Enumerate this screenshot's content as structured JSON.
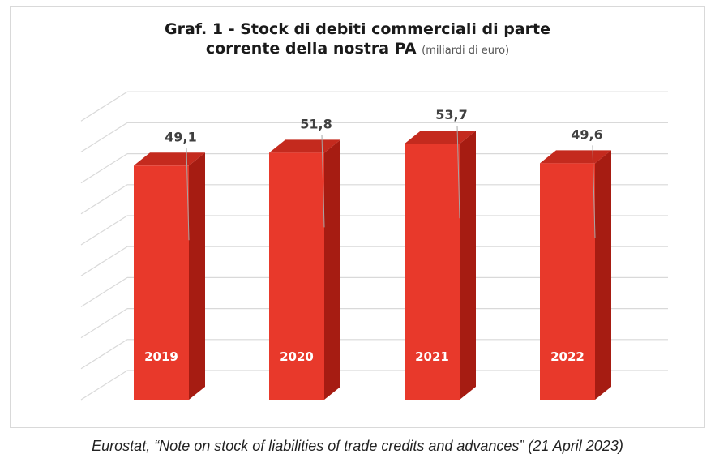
{
  "chart_data": {
    "type": "bar",
    "title_line1": "Graf. 1 - Stock di debiti commerciali di parte",
    "title_line2": "corrente della nostra PA",
    "unit_note": "(miliardi di euro)",
    "categories": [
      "2019",
      "2020",
      "2021",
      "2022"
    ],
    "values": [
      49.1,
      51.8,
      53.7,
      49.6
    ],
    "value_labels": [
      "49,1",
      "51,8",
      "53,7",
      "49,6"
    ],
    "ylim": [
      0,
      55
    ],
    "grid": true,
    "style": "3d-column",
    "bar_color": "#e8392b",
    "bar_side_color": "#a61c12",
    "bar_top_color": "#c42a1e"
  },
  "source_note": "Eurostat, “Note on stock of liabilities of trade credits and advances” (21 April 2023)"
}
